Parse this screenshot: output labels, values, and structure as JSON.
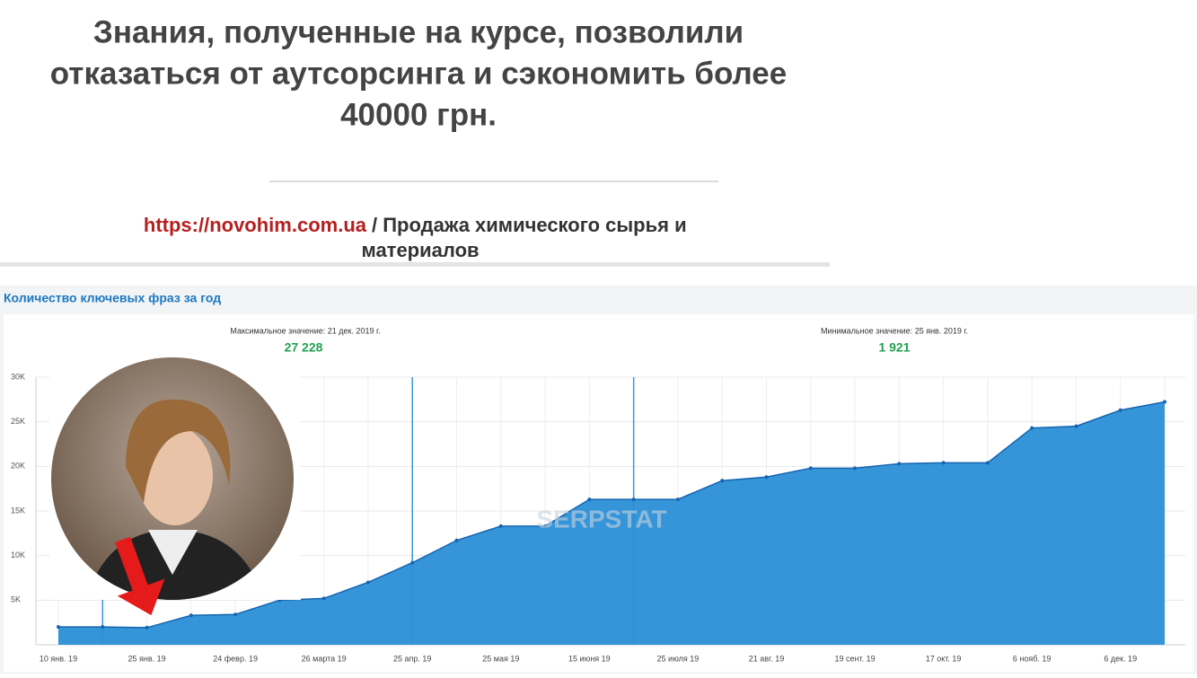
{
  "slide": {
    "headline": [
      "Знания, полученные на курсе, позволили",
      "отказаться от аутсорсинга и сэкономить более",
      "40000 грн."
    ],
    "source_link": "https://novohim.com.ua",
    "source_text": [
      "/ Продажа химического сырья и",
      "материалов"
    ]
  },
  "chart_data": {
    "type": "area",
    "title": "Количество ключевых фраз за год",
    "watermark": "SERPSTAT",
    "annotations": [
      {
        "text": "Максимальное значение: 21 дек. 2019 г.",
        "value": {
          "value": 27228,
          "label": "27 228"
        }
      },
      {
        "text": "Минимальное значение: 25 янв. 2019 г.",
        "value": {
          "value": 1921,
          "label": "1 921"
        }
      }
    ],
    "categories": [
      "10 янв. 19",
      null,
      "25 янв. 19",
      null,
      "24 февр. 19",
      null,
      "26 марта 19",
      null,
      "25 апр. 19",
      null,
      "25 мая 19",
      null,
      "15 июня 19",
      null,
      "25 июля 19",
      null,
      "21 авг. 19",
      null,
      "19 сент. 19",
      null,
      "17 окт. 19",
      null,
      "6 нояб. 19",
      null,
      "6 дек. 19",
      null
    ],
    "values": [
      2000,
      2000,
      1921,
      3300,
      3400,
      5000,
      5200,
      7000,
      9200,
      11700,
      13300,
      13300,
      16300,
      16300,
      16300,
      18400,
      18800,
      19800,
      19800,
      20300,
      20400,
      20400,
      24300,
      24500,
      26300,
      27228
    ],
    "color": "#2b8fd6",
    "ylim": [
      0,
      30000
    ],
    "yticks": [
      {
        "value": 5000,
        "label": "5K"
      },
      {
        "value": 10000,
        "label": "10K"
      },
      {
        "value": 15000,
        "label": "15K"
      },
      {
        "value": 20000,
        "label": "20K"
      },
      {
        "value": 25000,
        "label": "25K"
      },
      {
        "value": 30000,
        "label": "30K"
      }
    ],
    "grid": true
  }
}
